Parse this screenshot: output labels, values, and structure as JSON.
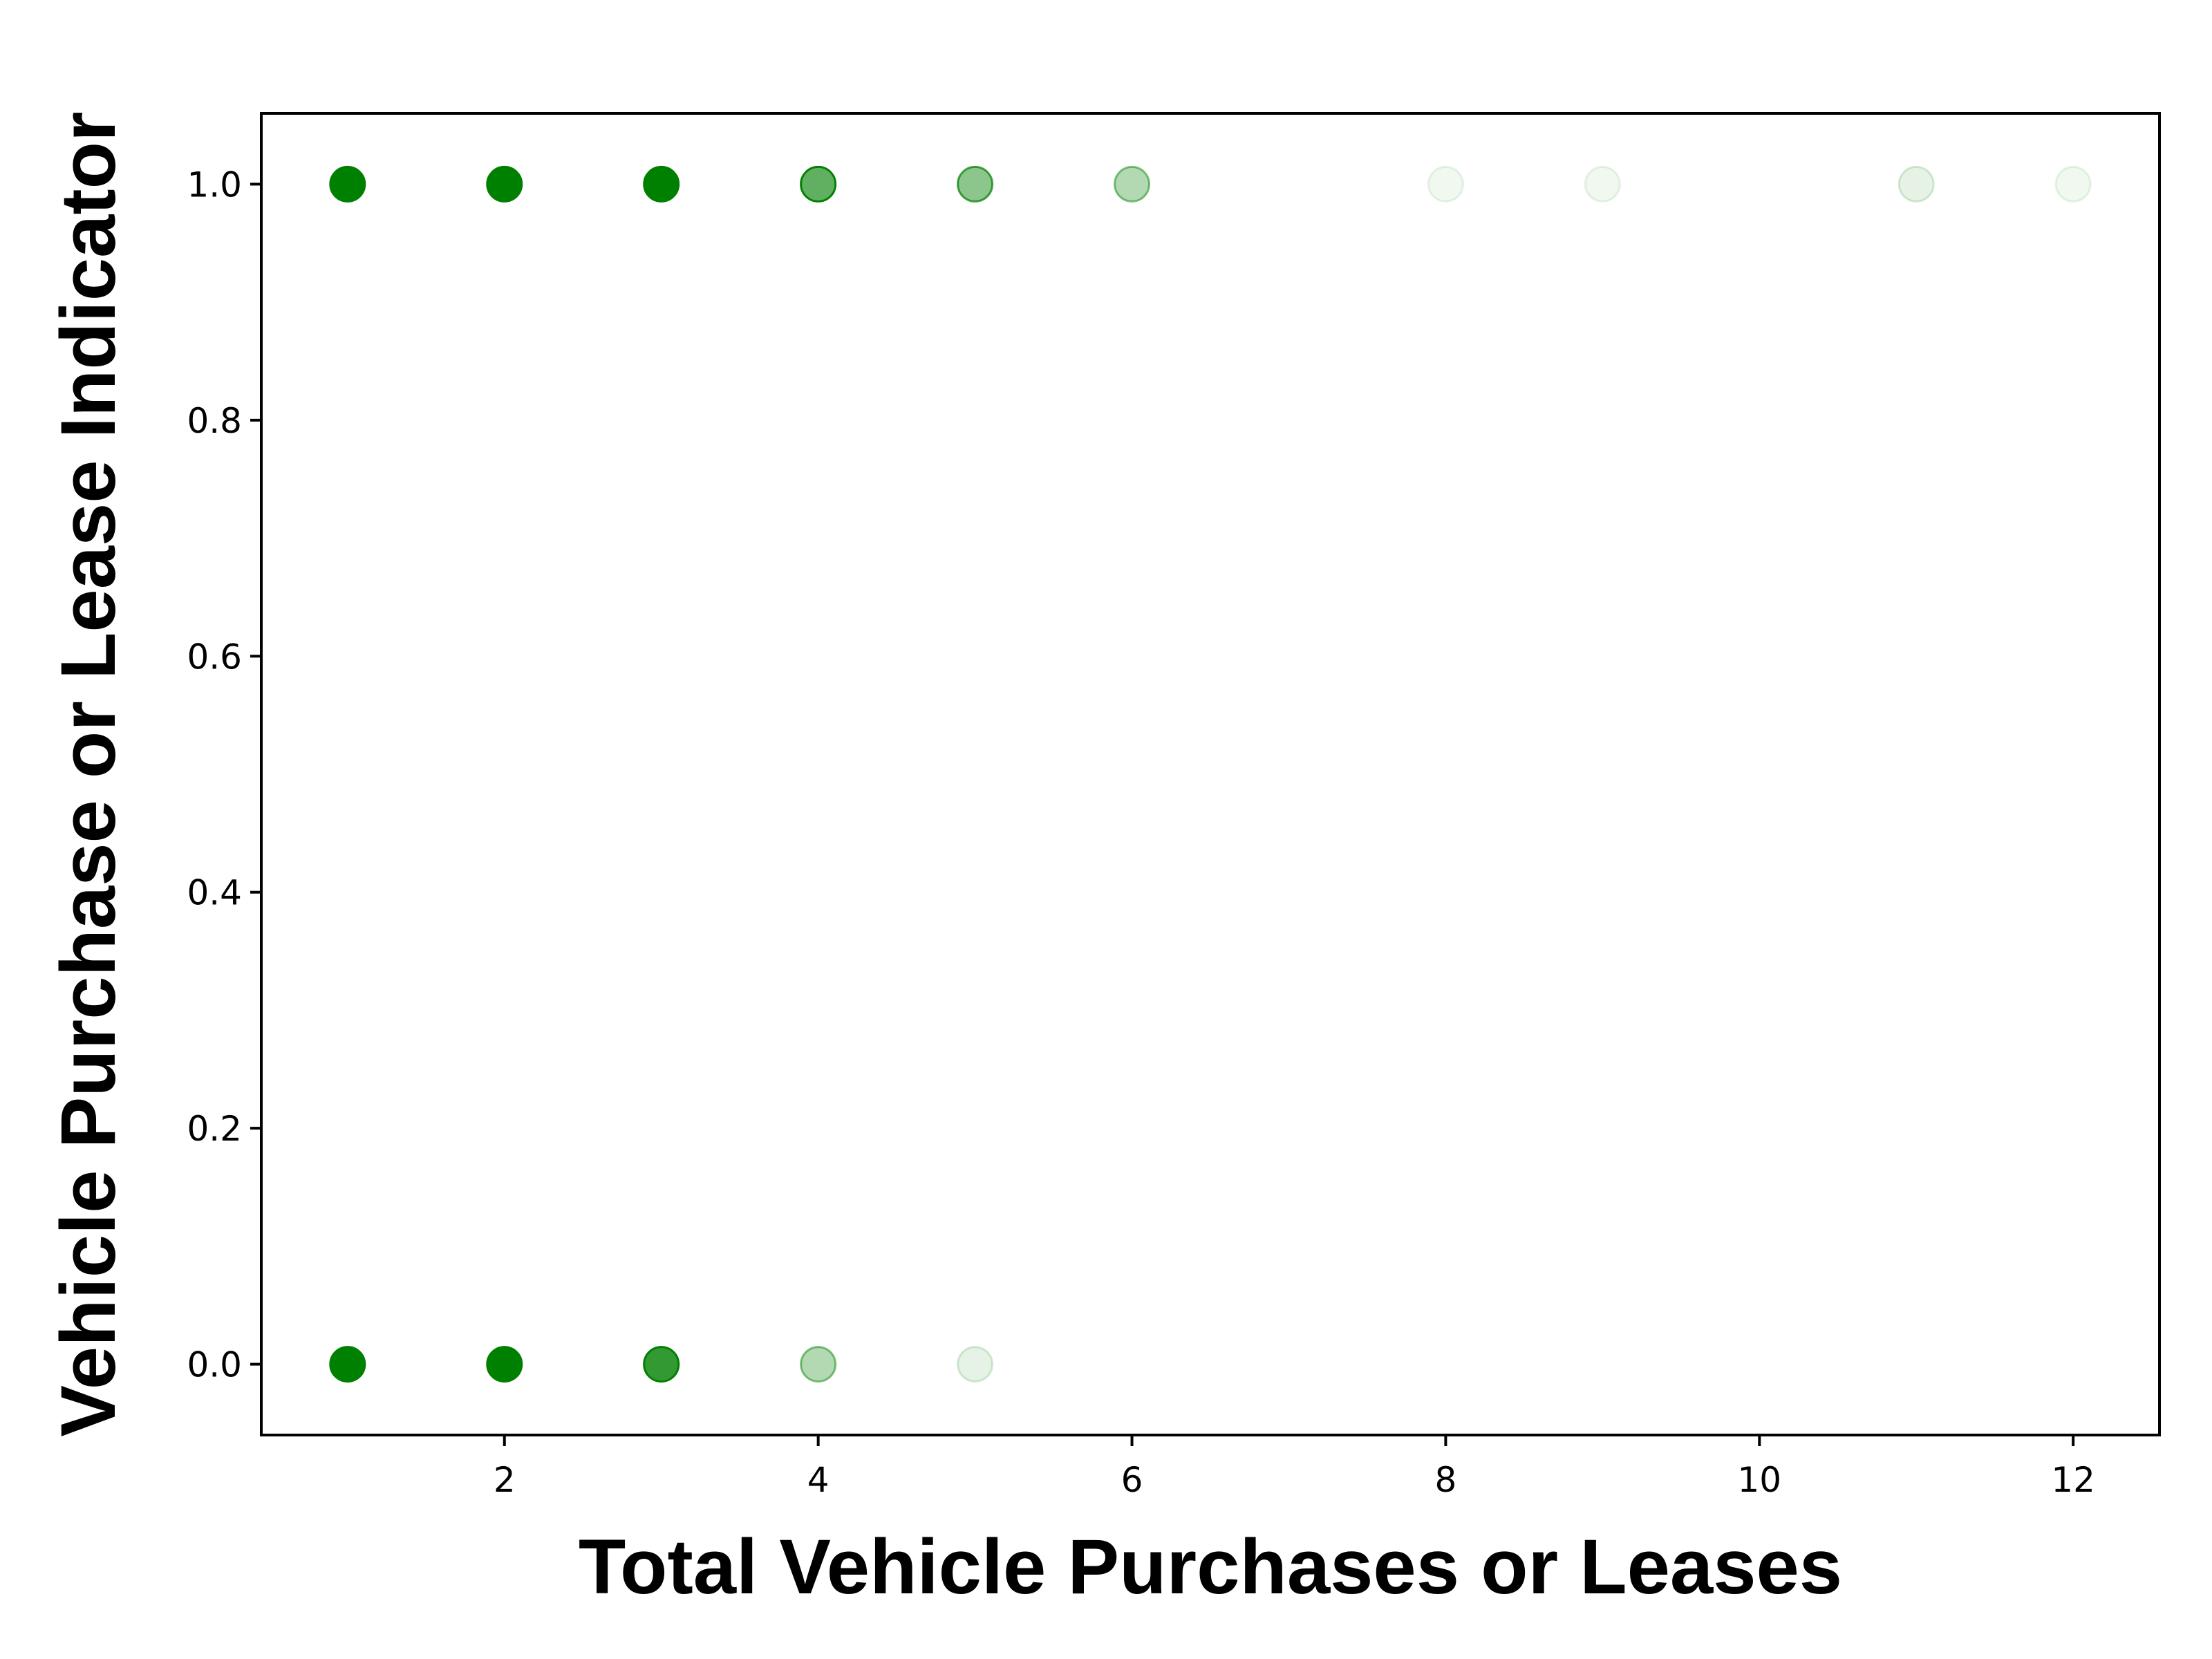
{
  "chart_data": {
    "type": "scatter",
    "title": "",
    "xlabel": "Total Vehicle Purchases or Leases",
    "ylabel": "Vehicle Purchase or Lease Indicator",
    "xlim": [
      0.45,
      12.55
    ],
    "ylim": [
      -0.06,
      1.06
    ],
    "x_ticks": [
      2,
      4,
      6,
      8,
      10,
      12
    ],
    "x_tick_labels": [
      "2",
      "4",
      "6",
      "8",
      "10",
      "12"
    ],
    "y_ticks": [
      0.0,
      0.2,
      0.4,
      0.6,
      0.8,
      1.0
    ],
    "y_tick_labels": [
      "0.0",
      "0.2",
      "0.4",
      "0.6",
      "0.8",
      "1.0"
    ],
    "grid": false,
    "legend": "none",
    "marker_color": "#008000",
    "points": [
      {
        "x": 1,
        "y": 1,
        "opacity": 1.0
      },
      {
        "x": 2,
        "y": 1,
        "opacity": 1.0
      },
      {
        "x": 3,
        "y": 1,
        "opacity": 1.0
      },
      {
        "x": 4,
        "y": 1,
        "opacity": 0.62
      },
      {
        "x": 5,
        "y": 1,
        "opacity": 0.45
      },
      {
        "x": 6,
        "y": 1,
        "opacity": 0.3
      },
      {
        "x": 8,
        "y": 1,
        "opacity": 0.06
      },
      {
        "x": 9,
        "y": 1,
        "opacity": 0.06
      },
      {
        "x": 11,
        "y": 1,
        "opacity": 0.1
      },
      {
        "x": 12,
        "y": 1,
        "opacity": 0.06
      },
      {
        "x": 1,
        "y": 0,
        "opacity": 1.0
      },
      {
        "x": 2,
        "y": 0,
        "opacity": 1.0
      },
      {
        "x": 3,
        "y": 0,
        "opacity": 0.8
      },
      {
        "x": 4,
        "y": 0,
        "opacity": 0.3
      },
      {
        "x": 5,
        "y": 0,
        "opacity": 0.1
      }
    ]
  }
}
